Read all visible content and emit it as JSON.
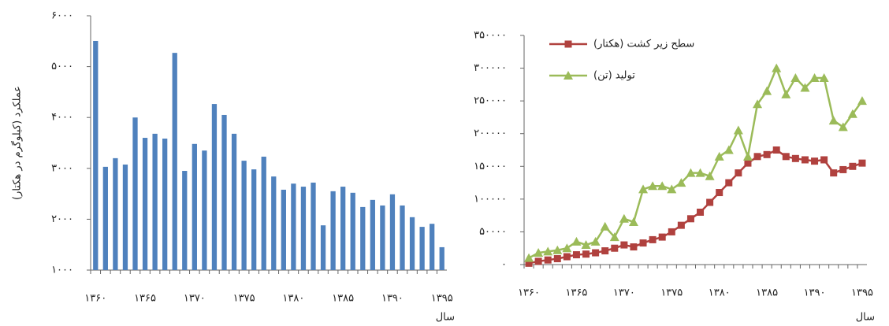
{
  "chart_data": [
    {
      "type": "bar",
      "y_label": "عملکرد (کیلوگرم در هکتار)",
      "x_label": "سال",
      "categories": [
        "۱۳۶۰",
        null,
        null,
        null,
        null,
        "۱۳۶۵",
        null,
        null,
        null,
        null,
        "۱۳۷۰",
        null,
        null,
        null,
        null,
        "۱۳۷۵",
        null,
        null,
        null,
        null,
        "۱۳۸۰",
        null,
        null,
        null,
        null,
        "۱۳۸۵",
        null,
        null,
        null,
        null,
        "۱۳۹۰",
        null,
        null,
        null,
        null,
        "۱۳۹۵"
      ],
      "values": [
        5505,
        3030,
        3200,
        3075,
        4000,
        3600,
        3680,
        3585,
        5270,
        2950,
        3480,
        3350,
        4265,
        4050,
        3680,
        3150,
        2980,
        3230,
        2840,
        2580,
        2700,
        2640,
        2720,
        1880,
        2550,
        2640,
        2520,
        2240,
        2380,
        2270,
        2490,
        2270,
        2040,
        1850,
        1910,
        1450
      ],
      "color": "#4f81bd",
      "ylim": [
        1000,
        6000
      ],
      "yticks": [
        {
          "value": 1000,
          "label": "۱۰۰۰"
        },
        {
          "value": 2000,
          "label": "۲۰۰۰"
        },
        {
          "value": 3000,
          "label": "۳۰۰۰"
        },
        {
          "value": 4000,
          "label": "۴۰۰۰"
        },
        {
          "value": 5000,
          "label": "۵۰۰۰"
        },
        {
          "value": 6000,
          "label": "۶۰۰۰"
        }
      ],
      "grid": false
    },
    {
      "type": "line",
      "x_label": "سال",
      "categories": [
        "۱۳۶۰",
        null,
        null,
        null,
        null,
        "۱۳۶۵",
        null,
        null,
        null,
        null,
        "۱۳۷۰",
        null,
        null,
        null,
        null,
        "۱۳۷۵",
        null,
        null,
        null,
        null,
        "۱۳۸۰",
        null,
        null,
        null,
        null,
        "۱۳۸۵",
        null,
        null,
        null,
        null,
        "۱۳۹۰",
        null,
        null,
        null,
        null,
        "۱۳۹۵"
      ],
      "series": [
        {
          "name": "سطح زیر کشت (هکتار)",
          "color": "#b0413e",
          "marker": "square",
          "values": [
            2000,
            5000,
            7000,
            9000,
            12000,
            15000,
            16000,
            18000,
            21000,
            25000,
            30000,
            27000,
            33000,
            38000,
            42000,
            50000,
            60000,
            70000,
            80000,
            95000,
            110000,
            125000,
            140000,
            155000,
            165000,
            168000,
            175000,
            165000,
            162000,
            160000,
            158000,
            160000,
            140000,
            145000,
            150000,
            155000
          ]
        },
        {
          "name": "تولید (تن)",
          "color": "#9bbb59",
          "marker": "triangle",
          "values": [
            10000,
            18000,
            20000,
            22000,
            25000,
            35000,
            30000,
            35000,
            58000,
            42000,
            70000,
            65000,
            115000,
            120000,
            120000,
            115000,
            125000,
            140000,
            140000,
            135000,
            165000,
            175000,
            205000,
            165000,
            245000,
            265000,
            300000,
            260000,
            285000,
            270000,
            285000,
            285000,
            220000,
            210000,
            230000,
            250000
          ]
        }
      ],
      "ylim": [
        0,
        350000
      ],
      "yticks": [
        {
          "value": 0,
          "label": "۰"
        },
        {
          "value": 50000,
          "label": "۵۰۰۰۰"
        },
        {
          "value": 100000,
          "label": "۱۰۰۰۰۰"
        },
        {
          "value": 150000,
          "label": "۱۵۰۰۰۰"
        },
        {
          "value": 200000,
          "label": "۲۰۰۰۰۰"
        },
        {
          "value": 250000,
          "label": "۲۵۰۰۰۰"
        },
        {
          "value": 300000,
          "label": "۳۰۰۰۰۰"
        },
        {
          "value": 350000,
          "label": "۳۵۰۰۰۰"
        }
      ],
      "legend": "top-left",
      "grid": false
    }
  ]
}
